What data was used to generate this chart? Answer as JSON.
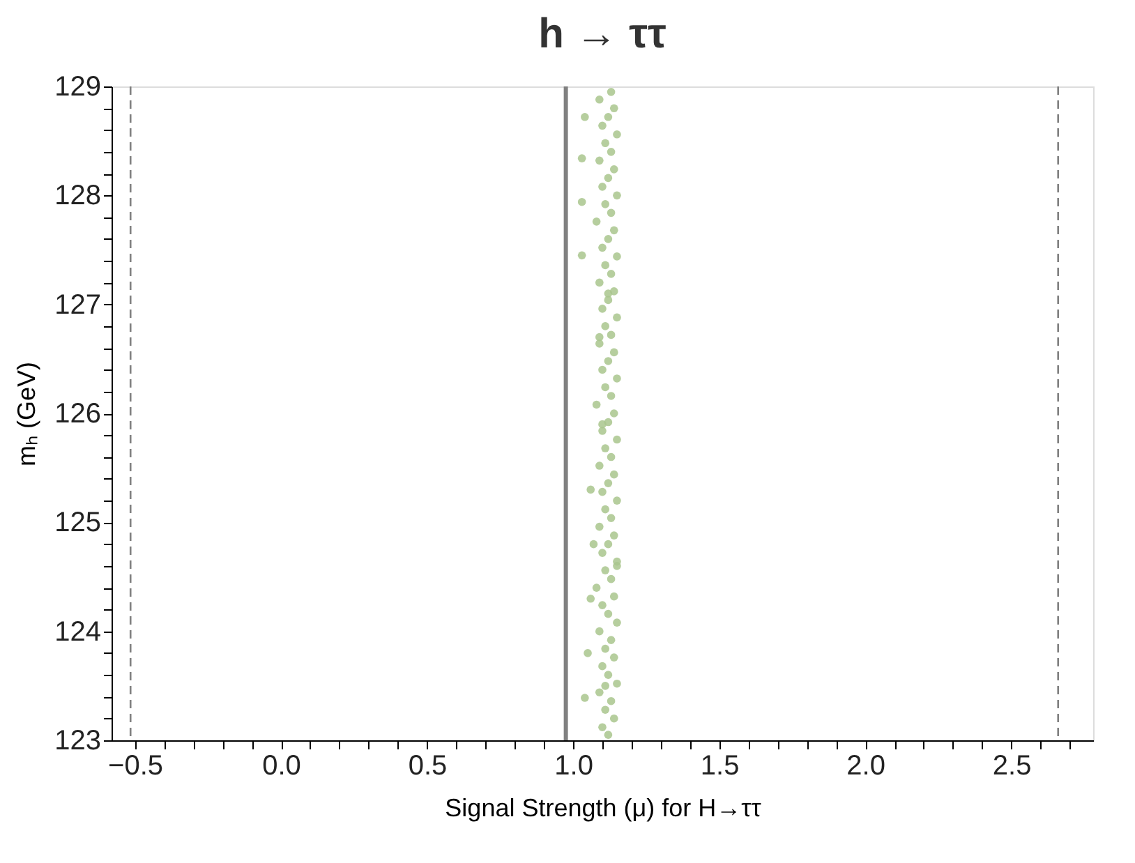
{
  "chart_data": {
    "type": "scatter",
    "title": "h → ττ",
    "xlabel": "Signal Strength (μ) for H→ττ",
    "ylabel": "mₕ (GeV)",
    "xlim": [
      -0.58,
      2.78
    ],
    "ylim": [
      123,
      129
    ],
    "xticks": [
      {
        "value": -0.5,
        "label": "−0.5"
      },
      {
        "value": -0.4,
        "label": null
      },
      {
        "value": -0.3,
        "label": null
      },
      {
        "value": -0.2,
        "label": null
      },
      {
        "value": -0.1,
        "label": null
      },
      {
        "value": 0,
        "label": "0.0"
      },
      {
        "value": 0.1,
        "label": null
      },
      {
        "value": 0.2,
        "label": null
      },
      {
        "value": 0.3,
        "label": null
      },
      {
        "value": 0.4,
        "label": null
      },
      {
        "value": 0.5,
        "label": "0.5"
      },
      {
        "value": 0.6,
        "label": null
      },
      {
        "value": 0.7,
        "label": null
      },
      {
        "value": 0.8,
        "label": null
      },
      {
        "value": 0.9,
        "label": null
      },
      {
        "value": 1,
        "label": "1.0"
      },
      {
        "value": 1.1,
        "label": null
      },
      {
        "value": 1.2,
        "label": null
      },
      {
        "value": 1.3,
        "label": null
      },
      {
        "value": 1.4,
        "label": null
      },
      {
        "value": 1.5,
        "label": "1.5"
      },
      {
        "value": 1.6,
        "label": null
      },
      {
        "value": 1.7,
        "label": null
      },
      {
        "value": 1.8,
        "label": null
      },
      {
        "value": 1.9,
        "label": null
      },
      {
        "value": 2,
        "label": "2.0"
      },
      {
        "value": 2.1,
        "label": null
      },
      {
        "value": 2.2,
        "label": null
      },
      {
        "value": 2.3,
        "label": null
      },
      {
        "value": 2.4,
        "label": null
      },
      {
        "value": 2.5,
        "label": "2.5"
      },
      {
        "value": 2.6,
        "label": null
      },
      {
        "value": 2.7,
        "label": null
      }
    ],
    "yticks": [
      123,
      {
        "value": 123.2,
        "label": null
      },
      {
        "value": 123.4,
        "label": null
      },
      {
        "value": 123.6,
        "label": null
      },
      {
        "value": 123.8,
        "label": null
      },
      124,
      {
        "value": 124.2,
        "label": null
      },
      {
        "value": 124.4,
        "label": null
      },
      {
        "value": 124.6,
        "label": null
      },
      {
        "value": 124.8,
        "label": null
      },
      125,
      {
        "value": 125.2,
        "label": null
      },
      {
        "value": 125.4,
        "label": null
      },
      {
        "value": 125.6,
        "label": null
      },
      {
        "value": 125.8,
        "label": null
      },
      126,
      {
        "value": 126.2,
        "label": null
      },
      {
        "value": 126.4,
        "label": null
      },
      {
        "value": 126.6,
        "label": null
      },
      {
        "value": 126.8,
        "label": null
      },
      127,
      {
        "value": 127.2,
        "label": null
      },
      {
        "value": 127.4,
        "label": null
      },
      {
        "value": 127.6,
        "label": null
      },
      {
        "value": 127.8,
        "label": null
      },
      128,
      {
        "value": 128.2,
        "label": null
      },
      {
        "value": 128.4,
        "label": null
      },
      {
        "value": 128.6,
        "label": null
      },
      {
        "value": 128.8,
        "label": null
      },
      129
    ],
    "grid": false,
    "marker": "circle",
    "ref_lines": [
      {
        "axis": "x",
        "value": 0.975,
        "color": "#808080",
        "line_style": "solid"
      },
      {
        "axis": "x",
        "value": -0.515,
        "color": "#808080",
        "line_style": "dashed"
      },
      {
        "axis": "x",
        "value": 2.66,
        "color": "#808080",
        "line_style": "dashed"
      }
    ],
    "series": [
      {
        "color": "#a9c58d",
        "x": [
          1.04,
          1.03,
          1.03,
          1.03,
          1.04,
          1.06,
          1.05,
          1.07,
          1.06,
          1.09,
          1.12,
          1.1,
          1.14,
          1.11,
          1.13,
          1.09,
          1.15,
          1.12,
          1.1,
          1.14,
          1.11,
          1.13,
          1.09,
          1.15,
          1.12,
          1.1,
          1.14,
          1.08,
          1.13,
          1.11,
          1.15,
          1.1,
          1.12,
          1.14,
          1.09,
          1.13,
          1.11,
          1.15,
          1.1,
          1.12,
          1.14,
          1.09,
          1.13,
          1.11,
          1.15,
          1.1,
          1.12,
          1.14,
          1.08,
          1.13,
          1.11,
          1.15,
          1.1,
          1.12,
          1.14,
          1.09,
          1.13,
          1.11,
          1.15,
          1.1,
          1.12,
          1.14,
          1.09,
          1.13,
          1.11,
          1.15,
          1.1,
          1.12,
          1.14,
          1.08,
          1.13,
          1.11,
          1.15,
          1.1,
          1.12,
          1.14,
          1.09,
          1.13,
          1.11,
          1.15,
          1.1,
          1.12,
          1.14,
          1.09,
          1.13,
          1.11,
          1.15,
          1.1,
          1.12
        ],
        "values": [
          128.72,
          128.34,
          127.94,
          127.45,
          123.39,
          124.3,
          123.8,
          124.8,
          125.3,
          126.7,
          123.05,
          123.12,
          123.2,
          123.28,
          123.36,
          123.44,
          123.52,
          123.6,
          123.68,
          123.76,
          123.84,
          123.92,
          124.0,
          124.08,
          124.16,
          124.24,
          124.32,
          124.4,
          124.48,
          124.56,
          124.64,
          124.72,
          124.8,
          124.88,
          124.96,
          125.04,
          125.12,
          125.2,
          125.28,
          125.36,
          125.44,
          125.52,
          125.6,
          125.68,
          125.76,
          125.84,
          125.92,
          126.0,
          126.08,
          126.16,
          126.24,
          126.32,
          126.4,
          126.48,
          126.56,
          126.64,
          126.72,
          126.8,
          126.88,
          126.96,
          127.04,
          127.12,
          127.2,
          127.28,
          127.36,
          127.44,
          127.52,
          127.6,
          127.68,
          127.76,
          127.84,
          127.92,
          128.0,
          128.08,
          128.16,
          128.24,
          128.32,
          128.4,
          128.48,
          128.56,
          128.64,
          128.72,
          128.8,
          128.88,
          128.95,
          123.5,
          124.6,
          125.9,
          127.1
        ]
      }
    ]
  }
}
